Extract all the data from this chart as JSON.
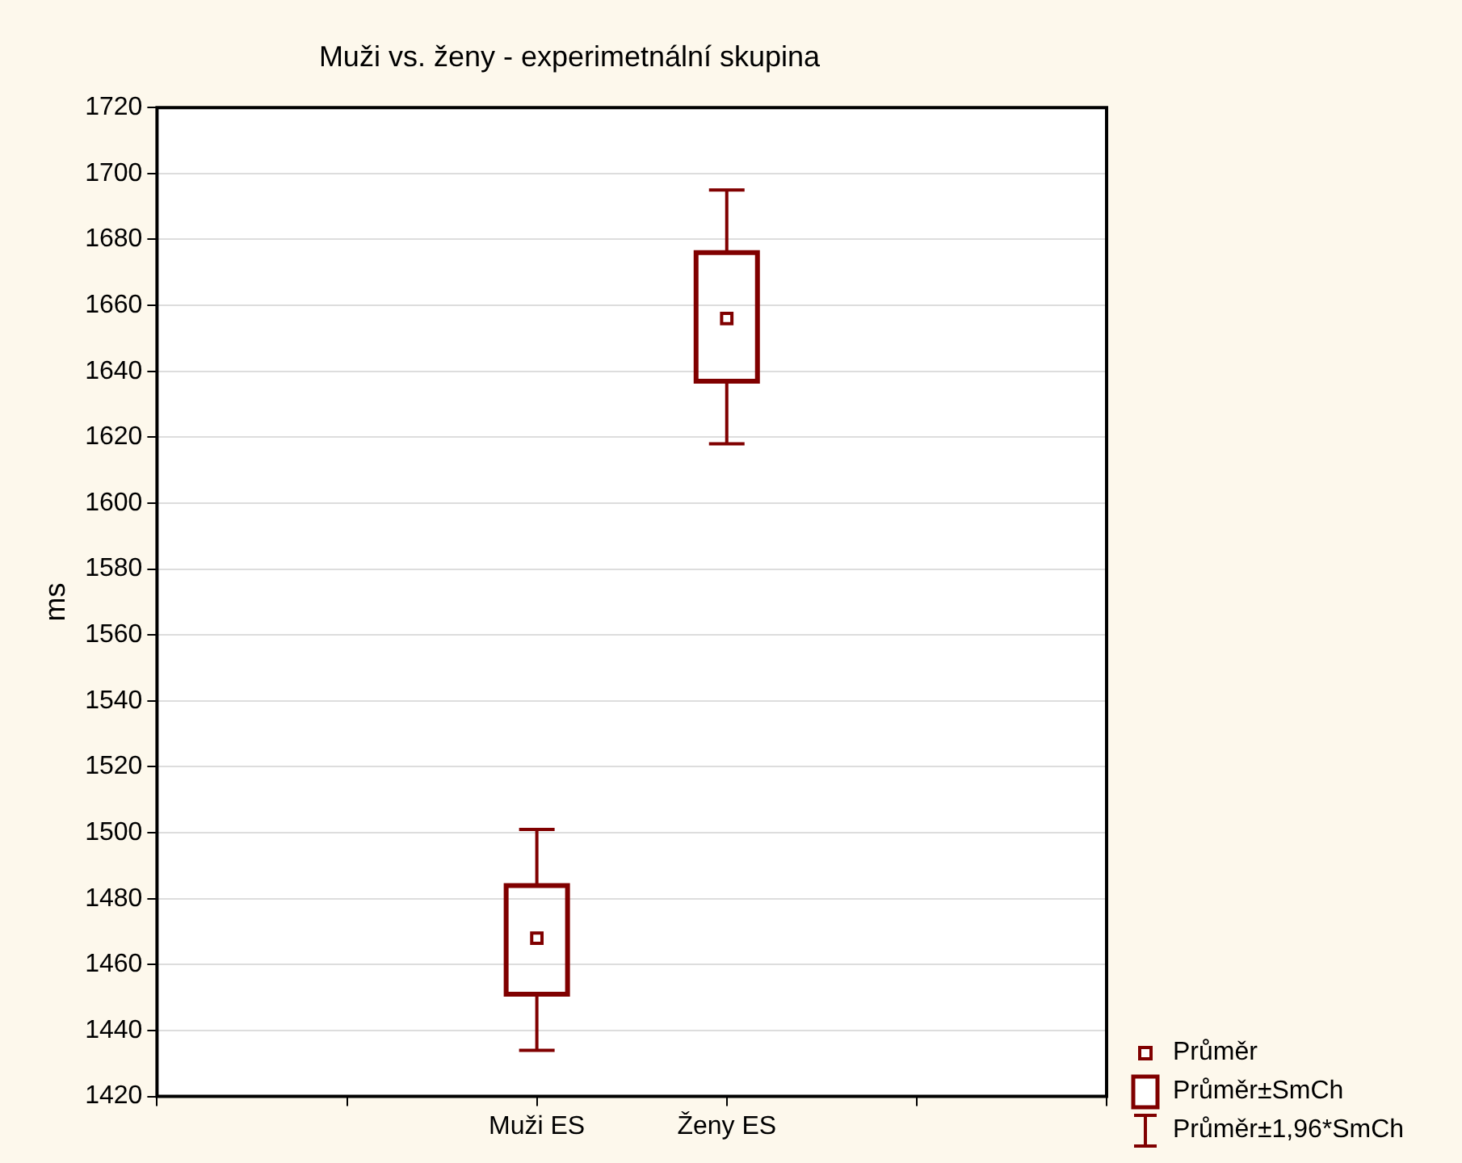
{
  "chart_data": {
    "type": "box",
    "title": "Muži vs. ženy - experimetnální skupina",
    "ylabel": "ms",
    "categories": [
      "Muži ES",
      "Ženy ES"
    ],
    "boxes": [
      {
        "low": 1434,
        "q1": 1451,
        "q3": 1484,
        "high": 1501,
        "mean": 1468
      },
      {
        "low": 1618,
        "q1": 1637,
        "q3": 1676,
        "high": 1695,
        "mean": 1656
      }
    ],
    "color": "#800000",
    "marker": "square",
    "ylim": [
      1420,
      1720
    ],
    "yticks": [
      1420,
      1440,
      1460,
      1480,
      1500,
      1520,
      1540,
      1560,
      1580,
      1600,
      1620,
      1640,
      1660,
      1680,
      1700,
      1720
    ],
    "grid": "y",
    "annotations": [
      "Průměr",
      "Průměr±SmCh",
      "Průměr±1,96*SmCh"
    ]
  }
}
